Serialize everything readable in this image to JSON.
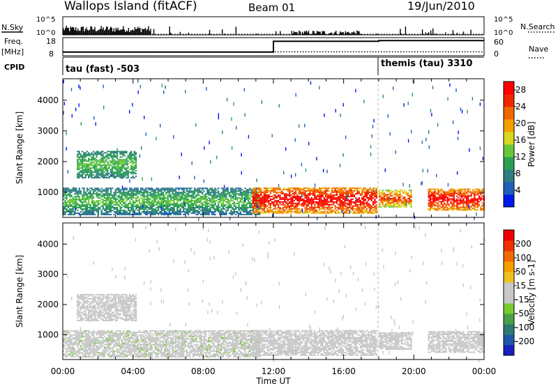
{
  "header": {
    "station": "Wallops Island (fitACF)",
    "beam": "Beam 01",
    "date": "19/Jun/2010"
  },
  "labels": {
    "nsky": "N.Sky",
    "freq_top": "Freq.",
    "freq_unit": "[MHz]",
    "cpid": "CPID",
    "nsearch": "N.Search",
    "nave": "Nave"
  },
  "noise_panel": {
    "y_ticks": [
      "10^5",
      "10^0"
    ],
    "right_ticks": [
      "10^5",
      "10^0"
    ]
  },
  "freq_panel": {
    "y_ticks": [
      "18",
      "8"
    ],
    "right_ticks": [
      "60",
      "0"
    ],
    "freq_level_start": 10.0,
    "freq_level_after_1200": 16.0,
    "nave_level": 13
  },
  "cpid_panel": {
    "modes": [
      {
        "label": "tau (fast) -503",
        "start_hour": 0
      },
      {
        "label": "themis (tau) 3310",
        "start_hour": 18.0
      }
    ]
  },
  "chart_data": [
    {
      "type": "heatmap",
      "title": "",
      "ylabel": "Slant Range [km]",
      "xlabel": "",
      "x_range_hours": [
        0,
        24
      ],
      "ylim": [
        180,
        4700
      ],
      "y_ticks": [
        1000,
        2000,
        3000,
        4000
      ],
      "colorbar": {
        "label": "Power [dB]",
        "ticks": [
          4,
          8,
          12,
          16,
          20,
          24,
          28
        ],
        "range": [
          0,
          30
        ],
        "colors": [
          "#0018f0",
          "#1f5fb8",
          "#2f7d80",
          "#2aa052",
          "#68c83a",
          "#d8d820",
          "#f4a000",
          "#f06800",
          "#f02800",
          "#ff0000"
        ]
      },
      "echo_regions": [
        {
          "t": [
            0.0,
            11.2
          ],
          "r": [
            250,
            1150
          ],
          "levels": [
            4,
            12,
            24
          ]
        },
        {
          "t": [
            0.8,
            4.2
          ],
          "r": [
            1450,
            2350
          ],
          "levels": [
            6,
            12
          ]
        },
        {
          "t": [
            10.8,
            17.9
          ],
          "r": [
            300,
            1150
          ],
          "levels": [
            16,
            28
          ]
        },
        {
          "t": [
            18.0,
            19.8
          ],
          "r": [
            500,
            1050
          ],
          "levels": [
            12,
            24
          ]
        },
        {
          "t": [
            20.8,
            24.0
          ],
          "r": [
            400,
            1100
          ],
          "levels": [
            16,
            28
          ]
        }
      ]
    },
    {
      "type": "heatmap",
      "title": "",
      "ylabel": "Slant Range [km]",
      "xlabel": "Time UT",
      "x_tick_labels": [
        "00:00",
        "04:00",
        "08:00",
        "12:00",
        "16:00",
        "20:00",
        "00:00"
      ],
      "x_range_hours": [
        0,
        24
      ],
      "ylim": [
        180,
        4700
      ],
      "y_ticks": [
        1000,
        2000,
        3000,
        4000
      ],
      "colorbar": {
        "label": "Velocity [m s-1]",
        "tick_labels": [
          "200",
          "100",
          "50",
          "15",
          "-15",
          "-50",
          "-100",
          "-200"
        ],
        "range": [
          -250,
          250
        ],
        "colors": [
          "#1820c0",
          "#1f58a8",
          "#2f7a70",
          "#4aa048",
          "#78cc30",
          "#c8c8c8",
          "#c8c8c8",
          "#f0c020",
          "#f4a000",
          "#f06a00",
          "#f03000",
          "#f00000"
        ]
      },
      "echo_regions": [
        {
          "t": [
            0.0,
            11.2
          ],
          "r": [
            250,
            1150
          ],
          "levels": [
            -60,
            15
          ]
        },
        {
          "t": [
            0.8,
            4.2
          ],
          "r": [
            1450,
            2350
          ],
          "levels": [
            -30,
            10
          ]
        },
        {
          "t": [
            10.8,
            17.9
          ],
          "r": [
            300,
            1150
          ],
          "levels": [
            -10,
            10
          ]
        },
        {
          "t": [
            18.0,
            19.8
          ],
          "r": [
            500,
            1050
          ],
          "levels": [
            -10,
            10
          ]
        },
        {
          "t": [
            20.8,
            24.0
          ],
          "r": [
            400,
            1100
          ],
          "levels": [
            -10,
            10
          ]
        }
      ]
    }
  ],
  "time_axis": {
    "title": "Time UT",
    "tick_labels": [
      "00:00",
      "04:00",
      "08:00",
      "12:00",
      "16:00",
      "20:00",
      "00:00"
    ]
  }
}
